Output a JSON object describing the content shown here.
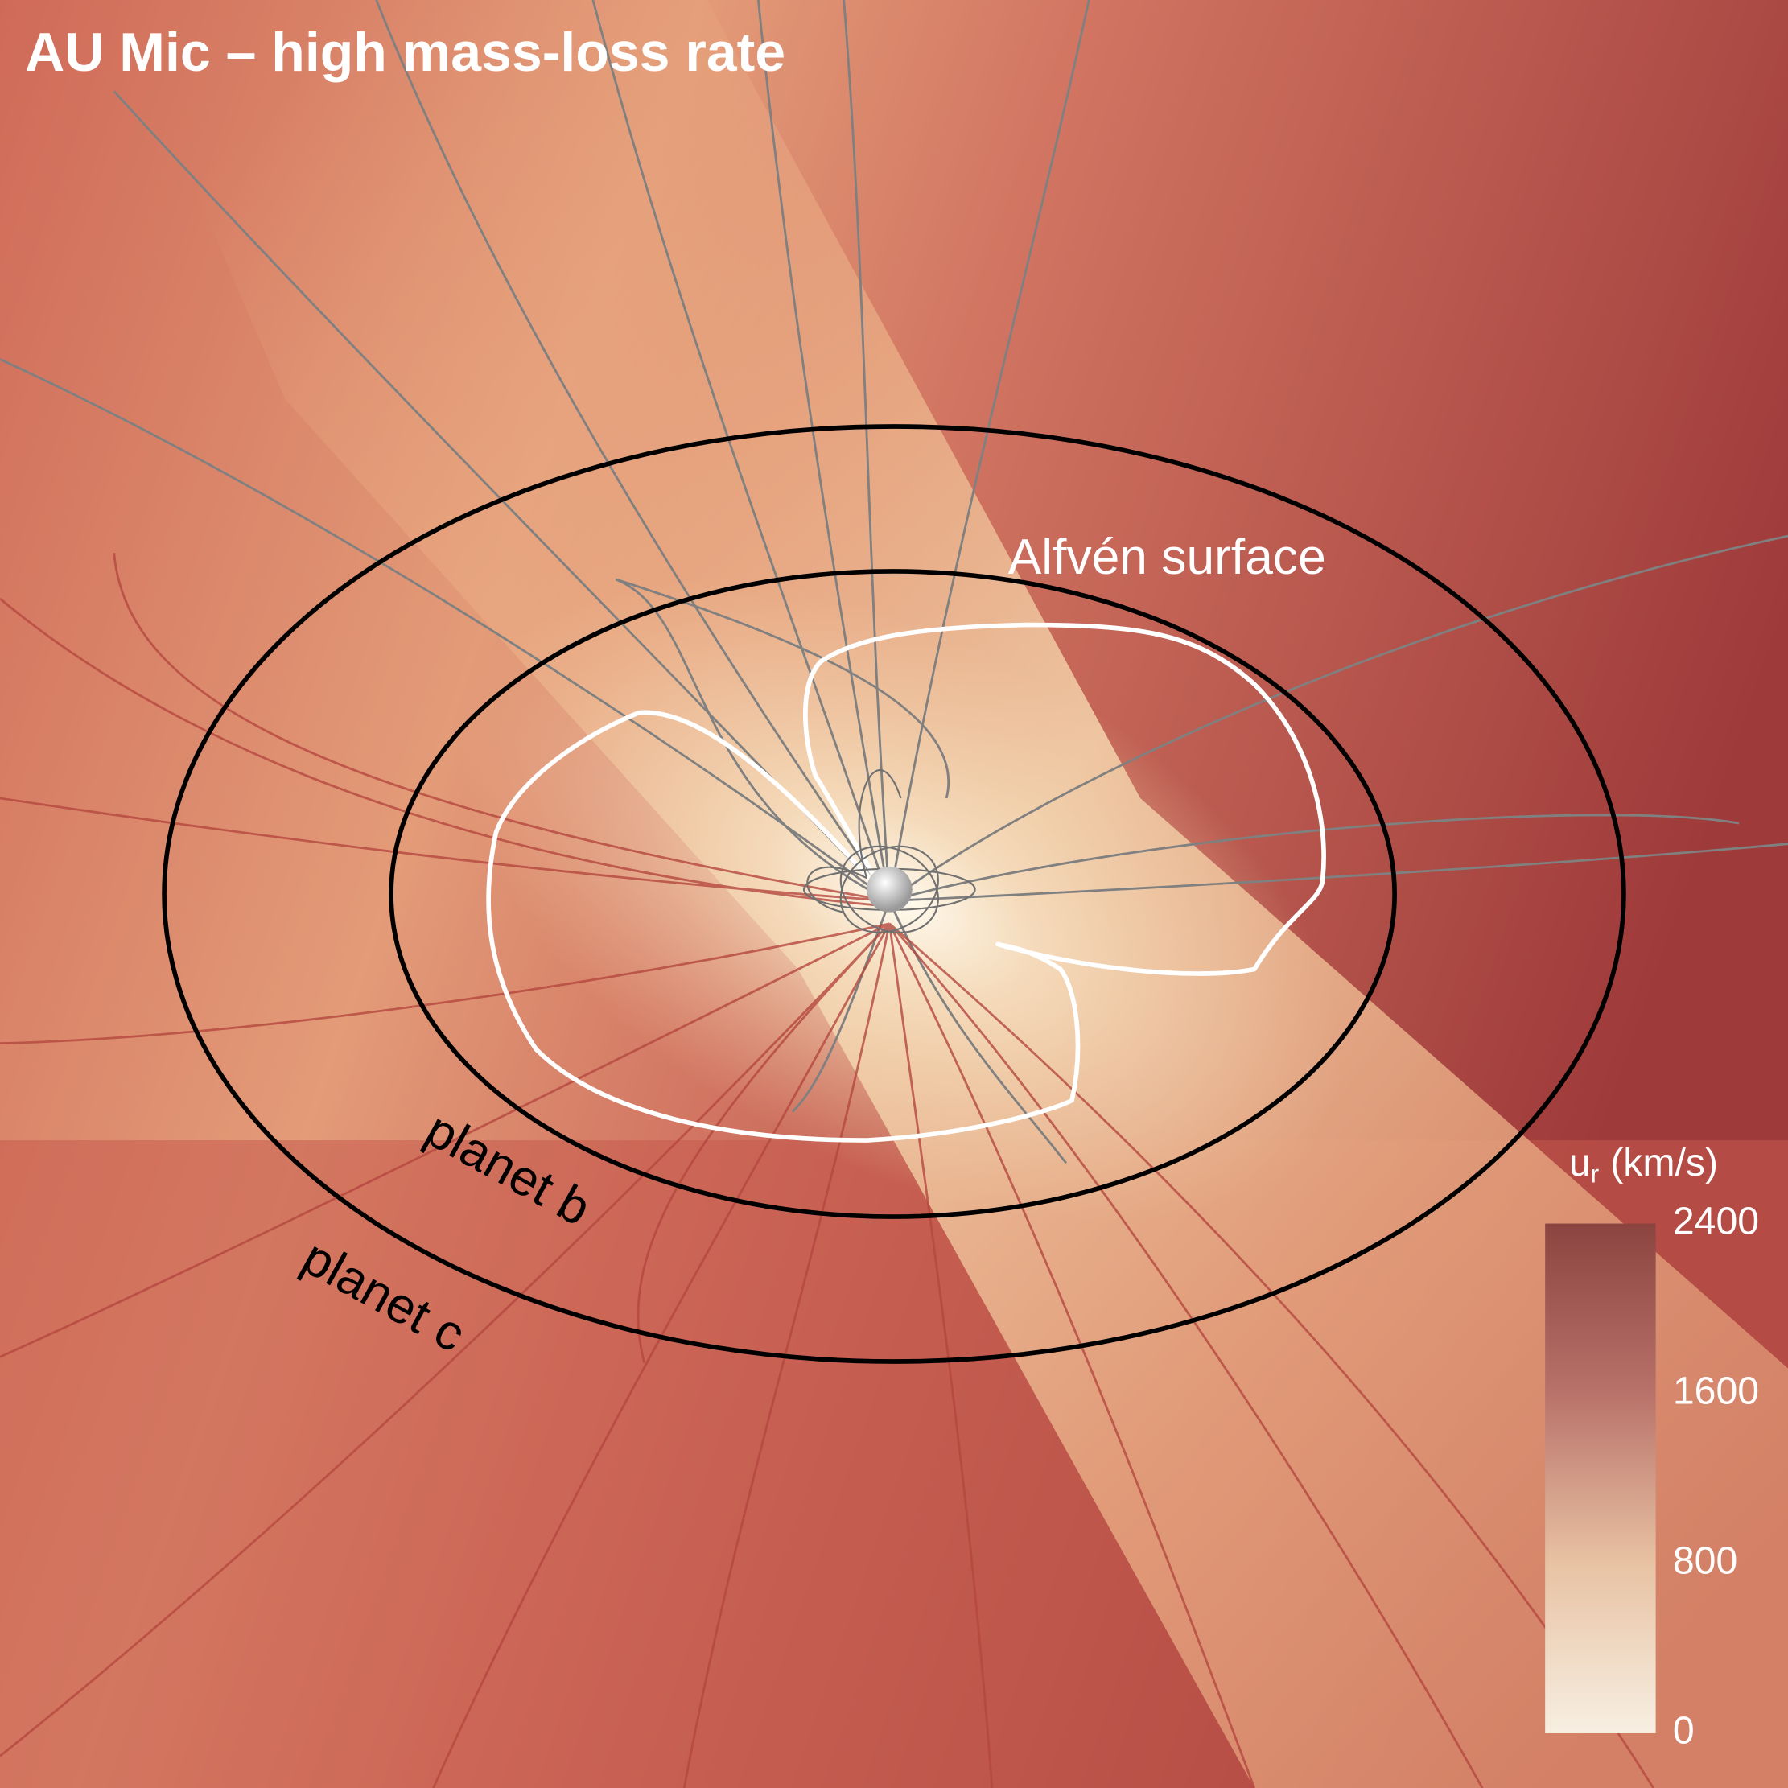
{
  "title": "AU Mic – high mass-loss rate",
  "annotations": {
    "alfven": "Alfvén surface",
    "planet_b": "planet b",
    "planet_c": "planet c"
  },
  "colorbar": {
    "symbol": "u",
    "subscript": "r",
    "unit": "(km/s)",
    "range": [
      0,
      2400
    ],
    "ticks": [
      0,
      800,
      1600,
      2400
    ],
    "colors": [
      "#f7efe2",
      "#e8c2a3",
      "#b9726a",
      "#8c4440"
    ]
  }
}
